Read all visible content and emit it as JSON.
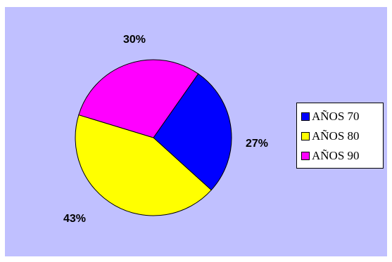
{
  "chart_data": {
    "type": "pie",
    "title": "",
    "categories": [
      "AÑOS 70",
      "AÑOS 80",
      "AÑOS 90"
    ],
    "values": [
      27,
      43,
      30
    ],
    "value_labels": [
      "27%",
      "43%",
      "30%"
    ],
    "colors": [
      "#0000ff",
      "#ffff00",
      "#ff00ff"
    ],
    "background_color": "#c0c0ff",
    "legend_placement": "right"
  },
  "legend": {
    "items": [
      {
        "label": "AÑOS 70",
        "color": "#0000ff"
      },
      {
        "label": "AÑOS 80",
        "color": "#ffff00"
      },
      {
        "label": "AÑOS 90",
        "color": "#ff00ff"
      }
    ]
  }
}
